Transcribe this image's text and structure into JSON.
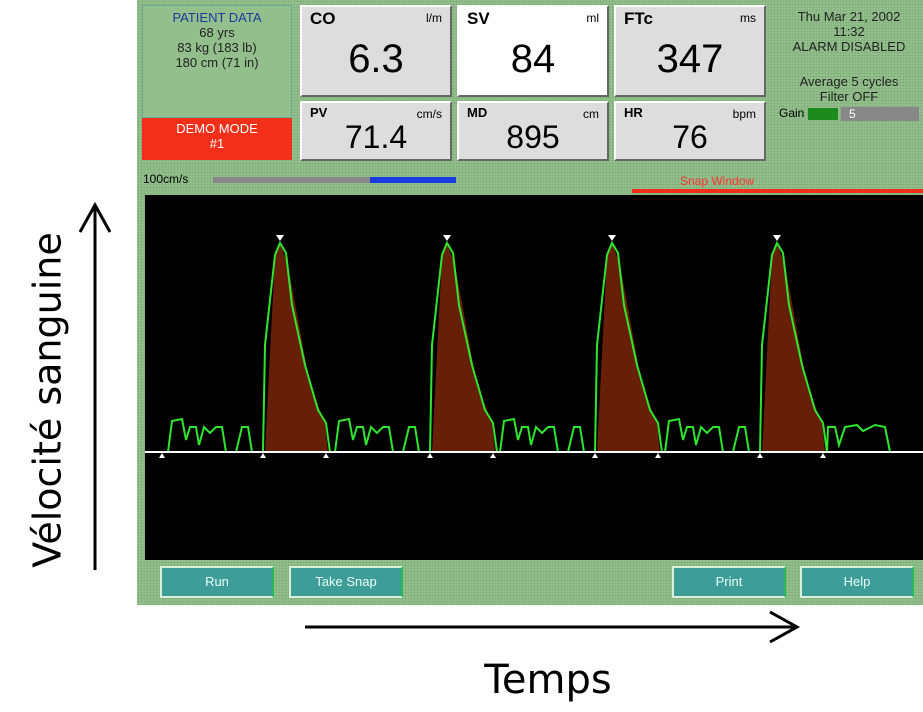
{
  "patient": {
    "title": "PATIENT DATA",
    "lines": [
      "68 yrs",
      "83 kg (183 lb)",
      "180 cm (71 in)"
    ],
    "mode": "DEMO MODE",
    "mode_id": "#1"
  },
  "metrics": [
    {
      "name": "CO",
      "unit": "l/m",
      "value": 6.3
    },
    {
      "name": "SV",
      "unit": "ml",
      "value": 84
    },
    {
      "name": "FTc",
      "unit": "ms",
      "value": 347
    },
    {
      "name": "PV",
      "unit": "cm/s",
      "value": 71.4
    },
    {
      "name": "MD",
      "unit": "cm",
      "value": 895
    },
    {
      "name": "HR",
      "unit": "bpm",
      "value": 76
    }
  ],
  "status": {
    "date": "Thu Mar 21, 2002",
    "time": "11:32",
    "alarm": "ALARM DISABLED",
    "average": "Average 5 cycles",
    "filter": "Filter OFF",
    "gain_label": "Gain",
    "gain": 5
  },
  "display": {
    "scale": "100cm/s",
    "snap": "Snap Window"
  },
  "buttons": [
    "Run",
    "Take Snap",
    "Print",
    "Help"
  ],
  "annotations": {
    "y_axis": "Vélocité sanguine",
    "x_axis": "Temps"
  }
}
